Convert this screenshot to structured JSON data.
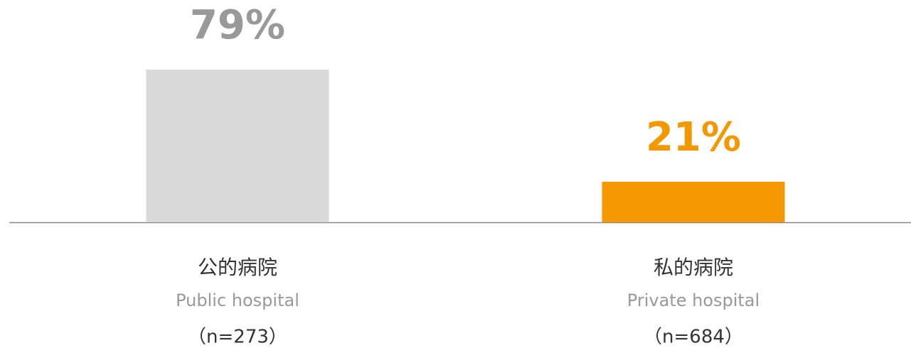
{
  "chart_data": {
    "type": "bar",
    "categories": [
      "公的病院",
      "私的病院"
    ],
    "category_subtitles": [
      "Public hospital",
      "Private hospital"
    ],
    "sample_sizes": [
      "（n=273）",
      "（n=684）"
    ],
    "values": [
      79,
      21
    ],
    "value_labels": [
      "79%",
      "21%"
    ],
    "colors": [
      "#d9d9d9",
      "#f39800"
    ],
    "value_label_colors": [
      "#999999",
      "#f39800"
    ]
  }
}
